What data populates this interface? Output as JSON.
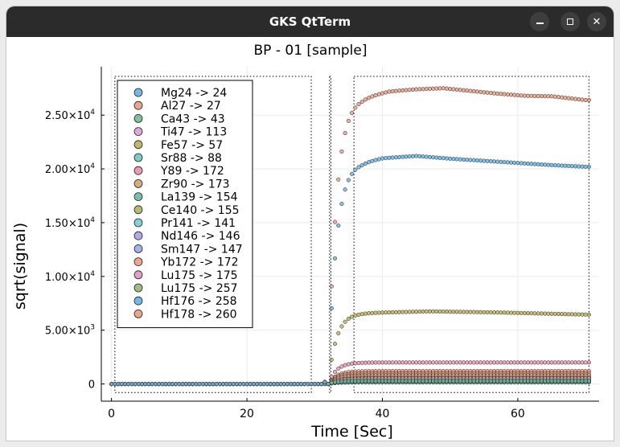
{
  "window": {
    "title": "GKS QtTerm",
    "buttons": {
      "minimize": "minimize-icon",
      "maximize": "maximize-icon",
      "close": "close-icon"
    }
  },
  "chart_data": {
    "type": "scatter",
    "title": "BP - 01 [sample]",
    "xlabel": "Time [Sec]",
    "ylabel": "sqrt(signal)",
    "xlim": [
      -1.5,
      72
    ],
    "ylim": [
      -1600,
      29500
    ],
    "x_ticks": [
      {
        "value": 0,
        "label": "0"
      },
      {
        "value": 20,
        "label": "20"
      },
      {
        "value": 40,
        "label": "40"
      },
      {
        "value": 60,
        "label": "60"
      }
    ],
    "y_ticks": [
      {
        "value": 0,
        "mant": "0",
        "exp": ""
      },
      {
        "value": 5000,
        "mant": "5.00×10",
        "exp": "3"
      },
      {
        "value": 10000,
        "mant": "1.00×10",
        "exp": "4"
      },
      {
        "value": 15000,
        "mant": "1.50×10",
        "exp": "4"
      },
      {
        "value": 20000,
        "mant": "2.00×10",
        "exp": "4"
      },
      {
        "value": 25000,
        "mant": "2.50×10",
        "exp": "4"
      }
    ],
    "grid": true,
    "legend_position": "top-left",
    "regions": [
      {
        "x0": 0.5,
        "x1": 29.5,
        "y0": -800,
        "y1": 28600
      },
      {
        "x0": 32.2,
        "x1": 32.4,
        "y0": -800,
        "y1": 28600
      },
      {
        "x0": 35.8,
        "x1": 70.5,
        "y0": -800,
        "y1": 28600
      }
    ],
    "t_baseline_end": 31,
    "t_rise_start": 32,
    "t_plateau": 37,
    "t_end": 70.5,
    "dt": 0.5,
    "series": [
      {
        "name": "Mg24 -> 24",
        "color": "#58aee4",
        "plateau": 20800,
        "ripple": [
          [
            0,
            -150
          ],
          [
            3,
            200
          ],
          [
            8,
            400
          ],
          [
            13,
            150
          ],
          [
            18,
            -50
          ],
          [
            23,
            -250
          ],
          [
            28,
            -450
          ],
          [
            33,
            -600
          ]
        ]
      },
      {
        "name": "Al27 -> 27",
        "color": "#e8967a",
        "plateau": 27000,
        "ripple": [
          [
            0,
            -350
          ],
          [
            4,
            200
          ],
          [
            8,
            400
          ],
          [
            12,
            500
          ],
          [
            16,
            250
          ],
          [
            20,
            0
          ],
          [
            24,
            -200
          ],
          [
            28,
            -250
          ],
          [
            33,
            -600
          ]
        ]
      },
      {
        "name": "Ca43 -> 43",
        "color": "#6cb68a",
        "plateau": 300,
        "ripple": []
      },
      {
        "name": "Ti47 -> 113",
        "color": "#d999d6",
        "plateau": 500,
        "ripple": []
      },
      {
        "name": "Fe57 -> 57",
        "color": "#b8a94e",
        "plateau": 6600,
        "ripple": [
          [
            0,
            0
          ],
          [
            10,
            150
          ],
          [
            20,
            50
          ],
          [
            33,
            -150
          ]
        ]
      },
      {
        "name": "Sr88 -> 88",
        "color": "#62c4c2",
        "plateau": 200,
        "ripple": []
      },
      {
        "name": "Y89 -> 172",
        "color": "#e98ca8",
        "plateau": 2000,
        "ripple": []
      },
      {
        "name": "Zr90 -> 173",
        "color": "#cfa06a",
        "plateau": 800,
        "ripple": []
      },
      {
        "name": "La139 -> 154",
        "color": "#5db4a2",
        "plateau": 150,
        "ripple": []
      },
      {
        "name": "Ce140 -> 155",
        "color": "#a9b25b",
        "plateau": 600,
        "ripple": []
      },
      {
        "name": "Pr141 -> 141",
        "color": "#6ec9d4",
        "plateau": 250,
        "ripple": []
      },
      {
        "name": "Nd146 -> 146",
        "color": "#a69be6",
        "plateau": 400,
        "ripple": []
      },
      {
        "name": "Sm147 -> 147",
        "color": "#8fa8e8",
        "plateau": 350,
        "ripple": []
      },
      {
        "name": "Yb172 -> 172",
        "color": "#ee927e",
        "plateau": 1000,
        "ripple": []
      },
      {
        "name": "Lu175 -> 175",
        "color": "#dc8fbd",
        "plateau": 700,
        "ripple": []
      },
      {
        "name": "Lu175 -> 257",
        "color": "#8fb26a",
        "plateau": 450,
        "ripple": []
      },
      {
        "name": "Hf176 -> 258",
        "color": "#58aee4",
        "plateau": 550,
        "ripple": []
      },
      {
        "name": "Hf178 -> 260",
        "color": "#e8967a",
        "plateau": 1200,
        "ripple": []
      }
    ]
  }
}
